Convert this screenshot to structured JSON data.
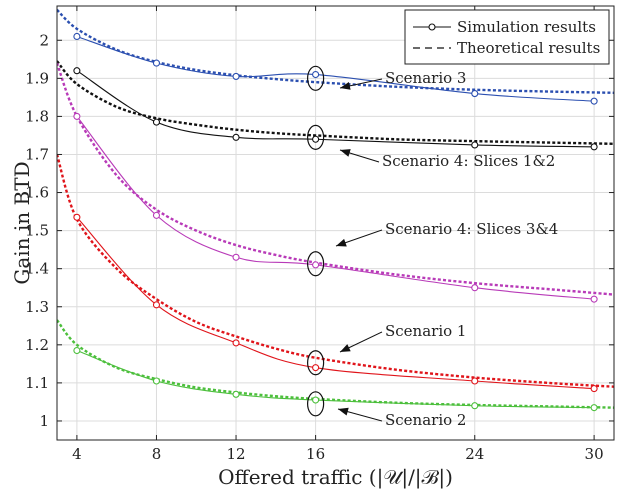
{
  "chart_data": {
    "type": "line",
    "xlabel": "Offered traffic (|𝒰|/|ℬ|)",
    "ylabel": "Gain in BTD",
    "xlim": [
      3,
      31
    ],
    "ylim": [
      0.95,
      2.09
    ],
    "xticks": [
      4,
      8,
      12,
      16,
      24,
      30
    ],
    "yticks": [
      1,
      1.1,
      1.2,
      1.3,
      1.4,
      1.5,
      1.6,
      1.7,
      1.8,
      1.9,
      2
    ],
    "grid": true,
    "legend": {
      "placement": "top-right",
      "entries": [
        {
          "label": "Simulation results",
          "style": "solid-circle"
        },
        {
          "label": "Theoretical results",
          "style": "dashed"
        }
      ]
    },
    "series": [
      {
        "name": "Scenario 3",
        "color": "#2b4fb0",
        "sim_x": [
          4,
          8,
          12,
          16,
          24,
          30
        ],
        "sim_y": [
          2.01,
          1.94,
          1.905,
          1.91,
          1.86,
          1.84
        ],
        "theory_x": [
          3,
          4,
          6,
          8,
          10,
          12,
          14,
          16,
          20,
          24,
          28,
          31
        ],
        "theory_y": [
          2.08,
          2.03,
          1.975,
          1.943,
          1.922,
          1.908,
          1.898,
          1.89,
          1.878,
          1.87,
          1.865,
          1.862
        ]
      },
      {
        "name": "Scenario 4: Slices 1&2",
        "color": "#111111",
        "sim_x": [
          4,
          8,
          12,
          16,
          24,
          30
        ],
        "sim_y": [
          1.92,
          1.785,
          1.745,
          1.74,
          1.725,
          1.72
        ],
        "theory_x": [
          3,
          4,
          6,
          8,
          10,
          12,
          14,
          16,
          20,
          24,
          28,
          31
        ],
        "theory_y": [
          1.945,
          1.885,
          1.825,
          1.795,
          1.778,
          1.765,
          1.756,
          1.75,
          1.74,
          1.735,
          1.731,
          1.728
        ]
      },
      {
        "name": "Scenario 4: Slices 3&4",
        "color": "#b83ab8",
        "sim_x": [
          4,
          8,
          12,
          16,
          24,
          30
        ],
        "sim_y": [
          1.8,
          1.54,
          1.43,
          1.41,
          1.35,
          1.32
        ],
        "theory_x": [
          3,
          4,
          6,
          8,
          10,
          12,
          14,
          16,
          20,
          24,
          28,
          31
        ],
        "theory_y": [
          1.94,
          1.8,
          1.645,
          1.555,
          1.5,
          1.462,
          1.436,
          1.416,
          1.385,
          1.362,
          1.345,
          1.332
        ]
      },
      {
        "name": "Scenario 1",
        "color": "#e0141a",
        "sim_x": [
          4,
          8,
          12,
          16,
          24,
          30
        ],
        "sim_y": [
          1.535,
          1.305,
          1.205,
          1.14,
          1.105,
          1.085
        ],
        "theory_x": [
          3,
          4,
          6,
          8,
          10,
          12,
          14,
          16,
          20,
          24,
          28,
          31
        ],
        "theory_y": [
          1.7,
          1.53,
          1.4,
          1.32,
          1.26,
          1.222,
          1.19,
          1.166,
          1.135,
          1.114,
          1.099,
          1.09
        ]
      },
      {
        "name": "Scenario 2",
        "color": "#4cbf3c",
        "sim_x": [
          4,
          8,
          12,
          16,
          24,
          30
        ],
        "sim_y": [
          1.185,
          1.105,
          1.07,
          1.055,
          1.04,
          1.035
        ],
        "theory_x": [
          3,
          4,
          6,
          8,
          10,
          12,
          14,
          16,
          20,
          24,
          28,
          31
        ],
        "theory_y": [
          1.265,
          1.2,
          1.14,
          1.11,
          1.088,
          1.075,
          1.065,
          1.058,
          1.048,
          1.042,
          1.038,
          1.035
        ]
      }
    ],
    "annotations": [
      {
        "text": "Scenario 3",
        "series": "Scenario 3",
        "x": 16,
        "y": 1.9
      },
      {
        "text": "Scenario 4: Slices 1&2",
        "series": "Scenario 4: Slices 1&2",
        "x": 16,
        "y": 1.745
      },
      {
        "text": "Scenario 4: Slices 3&4",
        "series": "Scenario 4: Slices 3&4",
        "x": 16,
        "y": 1.413
      },
      {
        "text": "Scenario 1",
        "series": "Scenario 1",
        "x": 16,
        "y": 1.153
      },
      {
        "text": "Scenario 2",
        "series": "Scenario 2",
        "x": 16,
        "y": 1.045
      }
    ]
  }
}
